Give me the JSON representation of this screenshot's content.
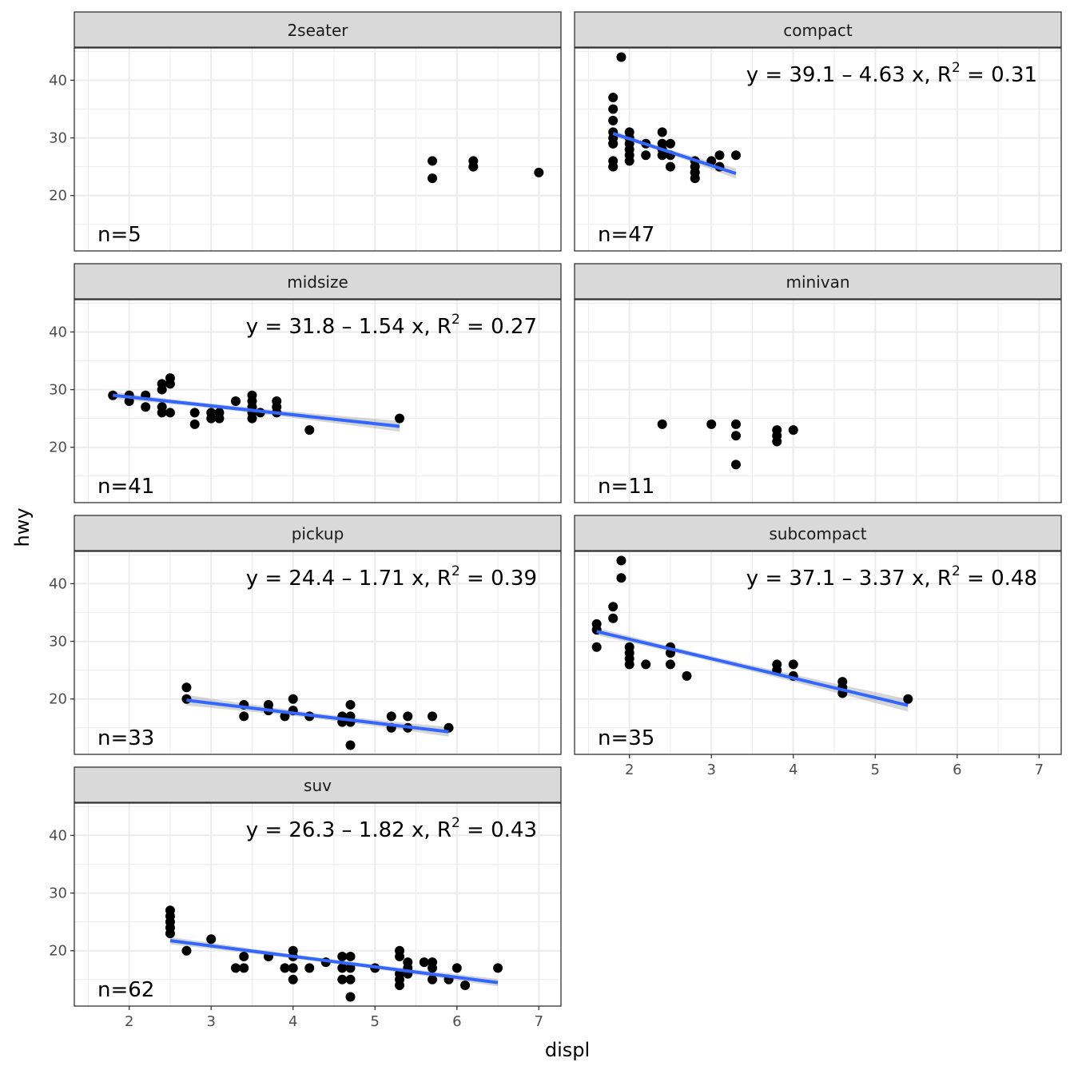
{
  "chart_data": {
    "type": "scatter",
    "xlabel": "displ",
    "ylabel": "hwy",
    "xlim": [
      1.33,
      7.27
    ],
    "ylim": [
      10.4,
      45.6
    ],
    "x_ticks": [
      "2",
      "3",
      "4",
      "5",
      "6",
      "7"
    ],
    "y_ticks": [
      "20",
      "30",
      "40"
    ],
    "x_tick_values": [
      2,
      3,
      4,
      5,
      6,
      7
    ],
    "y_tick_values": [
      20,
      30,
      40
    ],
    "grid": true,
    "theme": "bw",
    "colors": {
      "point": "#000000",
      "smooth_line": "#3366FF",
      "ribbon": "#999999",
      "strip_fill": "#D9D9D9",
      "grid": "#EBEBEB",
      "border": "#333333"
    },
    "facets": [
      {
        "name": "2seater",
        "n_label": "n=5",
        "equation": null,
        "points": [
          [
            5.7,
            26
          ],
          [
            5.7,
            23
          ],
          [
            6.2,
            26
          ],
          [
            6.2,
            25
          ],
          [
            7.0,
            24
          ]
        ]
      },
      {
        "name": "compact",
        "n_label": "n=47",
        "equation": {
          "lhs": "y = 39.1 – 4.63 x, R",
          "sup": "2",
          "rhs": "= 0.31"
        },
        "fit": {
          "intercept": 39.1,
          "slope": -4.63,
          "x_range": [
            1.8,
            3.3
          ]
        },
        "points": [
          [
            1.8,
            29
          ],
          [
            1.8,
            29
          ],
          [
            1.8,
            31
          ],
          [
            1.8,
            30
          ],
          [
            1.8,
            26
          ],
          [
            1.8,
            25
          ],
          [
            1.8,
            33
          ],
          [
            1.8,
            35
          ],
          [
            1.8,
            37
          ],
          [
            1.9,
            44
          ],
          [
            2.0,
            31
          ],
          [
            2.0,
            30
          ],
          [
            2.0,
            29
          ],
          [
            2.0,
            28
          ],
          [
            2.0,
            27
          ],
          [
            2.0,
            26
          ],
          [
            2.2,
            27
          ],
          [
            2.2,
            29
          ],
          [
            2.4,
            31
          ],
          [
            2.4,
            29
          ],
          [
            2.4,
            27
          ],
          [
            2.4,
            28
          ],
          [
            2.5,
            29
          ],
          [
            2.5,
            27
          ],
          [
            2.5,
            25
          ],
          [
            2.8,
            26
          ],
          [
            2.8,
            25
          ],
          [
            2.8,
            24
          ],
          [
            2.8,
            23
          ],
          [
            2.8,
            24
          ],
          [
            3.0,
            26
          ],
          [
            3.1,
            27
          ],
          [
            3.1,
            25
          ],
          [
            3.3,
            27
          ]
        ]
      },
      {
        "name": "midsize",
        "n_label": "n=41",
        "equation": {
          "lhs": "y = 31.8 – 1.54 x, R",
          "sup": "2",
          "rhs": "= 0.27"
        },
        "fit": {
          "intercept": 31.8,
          "slope": -1.54,
          "x_range": [
            1.8,
            5.3
          ]
        },
        "points": [
          [
            1.8,
            29
          ],
          [
            2.0,
            29
          ],
          [
            2.0,
            28
          ],
          [
            2.2,
            29
          ],
          [
            2.2,
            27
          ],
          [
            2.4,
            31
          ],
          [
            2.4,
            30
          ],
          [
            2.4,
            27
          ],
          [
            2.4,
            26
          ],
          [
            2.5,
            32
          ],
          [
            2.5,
            31
          ],
          [
            2.5,
            26
          ],
          [
            2.8,
            26
          ],
          [
            2.8,
            24
          ],
          [
            3.0,
            26
          ],
          [
            3.0,
            25
          ],
          [
            3.1,
            26
          ],
          [
            3.1,
            25
          ],
          [
            3.3,
            28
          ],
          [
            3.5,
            29
          ],
          [
            3.5,
            28
          ],
          [
            3.5,
            27
          ],
          [
            3.5,
            26
          ],
          [
            3.5,
            25
          ],
          [
            3.6,
            26
          ],
          [
            3.8,
            28
          ],
          [
            3.8,
            27
          ],
          [
            3.8,
            26
          ],
          [
            4.2,
            23
          ],
          [
            5.3,
            25
          ]
        ]
      },
      {
        "name": "minivan",
        "n_label": "n=11",
        "equation": null,
        "points": [
          [
            2.4,
            24
          ],
          [
            3.0,
            24
          ],
          [
            3.3,
            24
          ],
          [
            3.3,
            22
          ],
          [
            3.3,
            17
          ],
          [
            3.8,
            23
          ],
          [
            3.8,
            22
          ],
          [
            3.8,
            21
          ],
          [
            4.0,
            23
          ]
        ]
      },
      {
        "name": "pickup",
        "n_label": "n=33",
        "equation": {
          "lhs": "y = 24.4 – 1.71 x, R",
          "sup": "2",
          "rhs": "= 0.39"
        },
        "fit": {
          "intercept": 24.4,
          "slope": -1.71,
          "x_range": [
            2.7,
            5.9
          ]
        },
        "points": [
          [
            2.7,
            22
          ],
          [
            2.7,
            20
          ],
          [
            3.4,
            19
          ],
          [
            3.4,
            17
          ],
          [
            3.7,
            19
          ],
          [
            3.7,
            18
          ],
          [
            3.9,
            17
          ],
          [
            4.0,
            20
          ],
          [
            4.0,
            18
          ],
          [
            4.2,
            17
          ],
          [
            4.6,
            17
          ],
          [
            4.6,
            16
          ],
          [
            4.7,
            19
          ],
          [
            4.7,
            17
          ],
          [
            4.7,
            16
          ],
          [
            4.7,
            12
          ],
          [
            5.2,
            17
          ],
          [
            5.2,
            15
          ],
          [
            5.4,
            17
          ],
          [
            5.4,
            15
          ],
          [
            5.7,
            17
          ],
          [
            5.9,
            15
          ]
        ]
      },
      {
        "name": "subcompact",
        "n_label": "n=35",
        "equation": {
          "lhs": "y = 37.1 – 3.37 x, R",
          "sup": "2",
          "rhs": "= 0.48"
        },
        "fit": {
          "intercept": 37.1,
          "slope": -3.37,
          "x_range": [
            1.6,
            5.4
          ]
        },
        "points": [
          [
            1.6,
            33
          ],
          [
            1.6,
            32
          ],
          [
            1.6,
            29
          ],
          [
            1.8,
            36
          ],
          [
            1.8,
            34
          ],
          [
            1.9,
            44
          ],
          [
            1.9,
            41
          ],
          [
            2.0,
            29
          ],
          [
            2.0,
            28
          ],
          [
            2.0,
            27
          ],
          [
            2.0,
            26
          ],
          [
            2.2,
            26
          ],
          [
            2.5,
            29
          ],
          [
            2.5,
            28
          ],
          [
            2.5,
            26
          ],
          [
            2.7,
            24
          ],
          [
            3.8,
            26
          ],
          [
            3.8,
            25
          ],
          [
            4.0,
            26
          ],
          [
            4.0,
            24
          ],
          [
            4.6,
            23
          ],
          [
            4.6,
            22
          ],
          [
            4.6,
            21
          ],
          [
            5.4,
            20
          ]
        ]
      },
      {
        "name": "suv",
        "n_label": "n=62",
        "equation": {
          "lhs": "y = 26.3 – 1.82 x, R",
          "sup": "2",
          "rhs": "= 0.43"
        },
        "fit": {
          "intercept": 26.3,
          "slope": -1.82,
          "x_range": [
            2.5,
            6.5
          ]
        },
        "points": [
          [
            2.5,
            27
          ],
          [
            2.5,
            26
          ],
          [
            2.5,
            25
          ],
          [
            2.5,
            24
          ],
          [
            2.5,
            23
          ],
          [
            2.7,
            20
          ],
          [
            3.0,
            22
          ],
          [
            3.3,
            17
          ],
          [
            3.4,
            19
          ],
          [
            3.4,
            17
          ],
          [
            3.7,
            19
          ],
          [
            3.9,
            17
          ],
          [
            4.0,
            20
          ],
          [
            4.0,
            19
          ],
          [
            4.0,
            17
          ],
          [
            4.0,
            15
          ],
          [
            4.2,
            17
          ],
          [
            4.4,
            18
          ],
          [
            4.6,
            19
          ],
          [
            4.6,
            17
          ],
          [
            4.6,
            15
          ],
          [
            4.7,
            19
          ],
          [
            4.7,
            17
          ],
          [
            4.7,
            15
          ],
          [
            4.7,
            12
          ],
          [
            5.0,
            17
          ],
          [
            5.3,
            20
          ],
          [
            5.3,
            19
          ],
          [
            5.3,
            16
          ],
          [
            5.3,
            15
          ],
          [
            5.3,
            14
          ],
          [
            5.4,
            18
          ],
          [
            5.4,
            17
          ],
          [
            5.4,
            16
          ],
          [
            5.6,
            18
          ],
          [
            5.7,
            18
          ],
          [
            5.7,
            17
          ],
          [
            5.7,
            15
          ],
          [
            5.9,
            15
          ],
          [
            6.0,
            17
          ],
          [
            6.1,
            14
          ],
          [
            6.5,
            17
          ]
        ]
      }
    ]
  }
}
